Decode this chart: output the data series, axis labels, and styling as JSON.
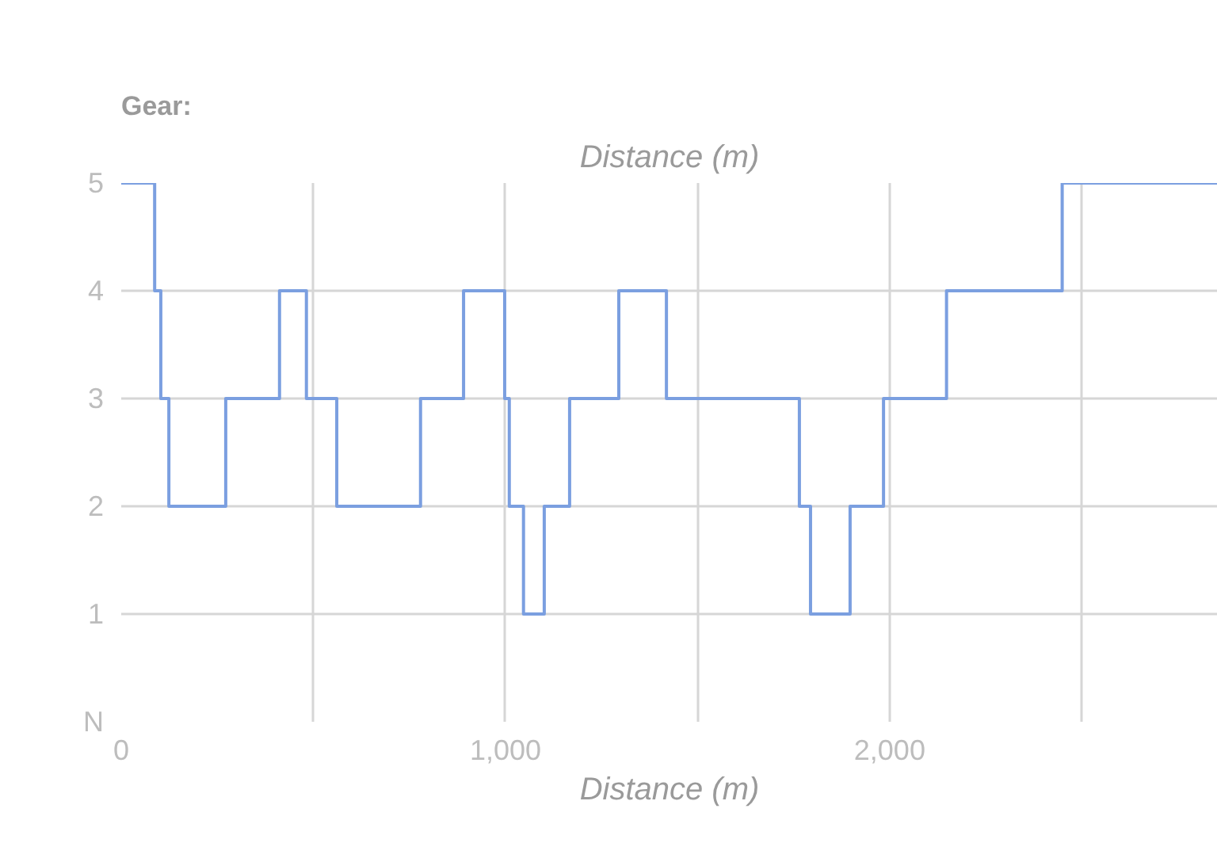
{
  "chart_data": {
    "type": "step",
    "title": "Gear:",
    "xlabel": "Distance (m)",
    "annotations": [
      "Distance (m)"
    ],
    "x": [
      0,
      87,
      103,
      124,
      272,
      412,
      482,
      561,
      779,
      891,
      998,
      1010,
      1047,
      1101,
      1167,
      1295,
      1419,
      1765,
      1794,
      1897,
      1984,
      2148,
      2449,
      2854
    ],
    "series": [
      {
        "color": "#7b9fe0",
        "values": [
          5,
          4,
          3,
          2,
          3,
          4,
          3,
          2,
          3,
          4,
          3,
          2,
          1,
          2,
          3,
          4,
          3,
          2,
          1,
          2,
          3,
          4,
          5,
          5
        ]
      }
    ],
    "xlim": [
      0,
      2854
    ],
    "xticks": [
      0,
      {
        "value": 500,
        "label": null
      },
      {
        "value": 1000,
        "label": "1,000"
      },
      {
        "value": 1500,
        "label": null
      },
      {
        "value": 2000,
        "label": "2,000"
      },
      {
        "value": 2500,
        "label": null
      }
    ],
    "ylim": [
      0,
      5
    ],
    "yticks": [
      {
        "value": 0,
        "label": "N"
      },
      1,
      2,
      3,
      4,
      5
    ],
    "grid": true
  }
}
